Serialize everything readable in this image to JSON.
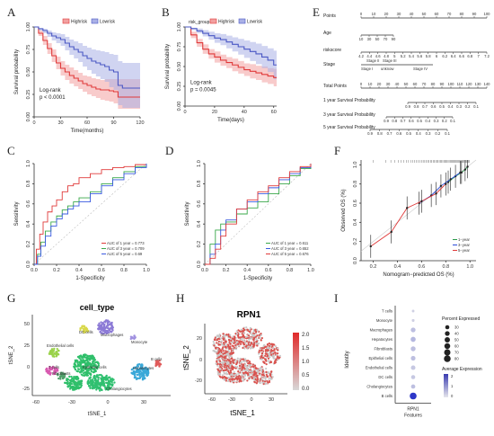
{
  "colors": {
    "highrisk": "#e03a3a",
    "highrisk_band": "#f2a0a0",
    "lowrisk": "#4a57c4",
    "lowrisk_band": "#a9b0e6",
    "roc1": "#e03a3a",
    "roc3": "#3aa84a",
    "roc5": "#3a5ae0",
    "cal1": "#2a9a4a",
    "cal3": "#2a4ad8",
    "cal5": "#e03a3a",
    "tsne_red": "#d9534f"
  },
  "chart_data": [
    {
      "id": "A",
      "type": "line",
      "letter": "A",
      "legend": [
        "Highrisk",
        "Lowrisk"
      ],
      "xlabel": "Time(months)",
      "ylabel": "Survival probability",
      "xticks": [
        "0",
        "30",
        "60",
        "90",
        "120"
      ],
      "xlim": [
        0,
        120
      ],
      "yticks": [
        "0.00",
        "0.25",
        "0.50",
        "0.75",
        "1.00"
      ],
      "ylim": [
        0,
        1
      ],
      "annotation": [
        "Log-rank",
        "p < 0.0001"
      ],
      "series": [
        {
          "name": "Highrisk",
          "x": [
            0,
            5,
            10,
            15,
            20,
            25,
            30,
            35,
            40,
            45,
            50,
            55,
            60,
            65,
            70,
            75,
            80,
            85,
            90,
            95,
            100,
            105,
            110,
            115,
            120
          ],
          "values": [
            1.0,
            0.93,
            0.85,
            0.76,
            0.68,
            0.6,
            0.54,
            0.5,
            0.46,
            0.43,
            0.4,
            0.37,
            0.35,
            0.33,
            0.31,
            0.3,
            0.3,
            0.29,
            0.28,
            0.22,
            0.22,
            0.22,
            0.22,
            0.22,
            0.22
          ],
          "lower": [
            1.0,
            0.9,
            0.8,
            0.7,
            0.61,
            0.53,
            0.46,
            0.41,
            0.37,
            0.34,
            0.31,
            0.28,
            0.25,
            0.23,
            0.21,
            0.19,
            0.18,
            0.17,
            0.15,
            0.09,
            0.09,
            0.09,
            0.09,
            0.09,
            0.09
          ],
          "upper": [
            1.0,
            0.96,
            0.9,
            0.82,
            0.75,
            0.67,
            0.62,
            0.58,
            0.55,
            0.52,
            0.49,
            0.46,
            0.45,
            0.43,
            0.42,
            0.41,
            0.42,
            0.42,
            0.42,
            0.42,
            0.42,
            0.42,
            0.42,
            0.42,
            0.42
          ]
        },
        {
          "name": "Lowrisk",
          "x": [
            0,
            5,
            10,
            15,
            20,
            25,
            30,
            35,
            40,
            45,
            50,
            55,
            60,
            65,
            70,
            75,
            80,
            85,
            90,
            95,
            100,
            105,
            110,
            115,
            120
          ],
          "values": [
            1.0,
            0.98,
            0.96,
            0.93,
            0.9,
            0.88,
            0.86,
            0.82,
            0.78,
            0.75,
            0.72,
            0.68,
            0.65,
            0.62,
            0.6,
            0.58,
            0.56,
            0.52,
            0.5,
            0.35,
            0.32,
            0.32,
            0.32,
            0.32,
            0.32
          ],
          "lower": [
            1.0,
            0.96,
            0.93,
            0.89,
            0.85,
            0.82,
            0.79,
            0.74,
            0.69,
            0.65,
            0.61,
            0.56,
            0.52,
            0.48,
            0.45,
            0.42,
            0.39,
            0.33,
            0.3,
            0.13,
            0.1,
            0.1,
            0.1,
            0.1,
            0.1
          ],
          "upper": [
            1.0,
            0.99,
            0.98,
            0.96,
            0.94,
            0.93,
            0.92,
            0.89,
            0.86,
            0.84,
            0.82,
            0.79,
            0.77,
            0.75,
            0.74,
            0.73,
            0.72,
            0.7,
            0.69,
            0.62,
            0.6,
            0.6,
            0.6,
            0.6,
            0.6
          ]
        }
      ]
    },
    {
      "id": "B",
      "type": "line",
      "letter": "B",
      "legend_title": "risk_group",
      "legend": [
        "Highrisk",
        "Lowrisk"
      ],
      "xlabel": "Time(days)",
      "ylabel": "Survival probability",
      "xticks": [
        "0",
        "20",
        "40",
        "60"
      ],
      "xlim": [
        0,
        62
      ],
      "yticks": [
        "0.00",
        "0.25",
        "0.50",
        "0.75",
        "1.00"
      ],
      "ylim": [
        0,
        1
      ],
      "annotation": [
        "Log-rank",
        "p = 0.0045"
      ],
      "series": [
        {
          "name": "Highrisk",
          "x": [
            0,
            4,
            8,
            12,
            16,
            20,
            24,
            28,
            32,
            36,
            40,
            44,
            48,
            52,
            56,
            60,
            62
          ],
          "values": [
            1.0,
            0.9,
            0.8,
            0.72,
            0.66,
            0.62,
            0.58,
            0.55,
            0.52,
            0.49,
            0.46,
            0.44,
            0.42,
            0.4,
            0.38,
            0.36,
            0.36
          ],
          "lower": [
            1.0,
            0.86,
            0.75,
            0.66,
            0.6,
            0.55,
            0.51,
            0.48,
            0.44,
            0.41,
            0.38,
            0.35,
            0.33,
            0.3,
            0.28,
            0.25,
            0.25
          ],
          "upper": [
            1.0,
            0.94,
            0.85,
            0.78,
            0.72,
            0.69,
            0.65,
            0.62,
            0.6,
            0.57,
            0.54,
            0.53,
            0.51,
            0.5,
            0.48,
            0.47,
            0.47
          ]
        },
        {
          "name": "Lowrisk",
          "x": [
            0,
            4,
            8,
            12,
            16,
            20,
            24,
            28,
            32,
            36,
            40,
            44,
            48,
            52,
            56,
            60,
            62
          ],
          "values": [
            1.0,
            0.98,
            0.95,
            0.92,
            0.89,
            0.86,
            0.84,
            0.81,
            0.78,
            0.75,
            0.72,
            0.69,
            0.66,
            0.62,
            0.58,
            0.52,
            0.52
          ],
          "lower": [
            1.0,
            0.96,
            0.92,
            0.88,
            0.84,
            0.8,
            0.77,
            0.73,
            0.69,
            0.65,
            0.61,
            0.57,
            0.53,
            0.48,
            0.43,
            0.34,
            0.34
          ],
          "upper": [
            1.0,
            0.99,
            0.98,
            0.96,
            0.94,
            0.92,
            0.91,
            0.89,
            0.87,
            0.85,
            0.83,
            0.81,
            0.79,
            0.76,
            0.73,
            0.7,
            0.7
          ]
        }
      ]
    },
    {
      "id": "C",
      "type": "line",
      "letter": "C",
      "xlabel": "1-Specificity",
      "ylabel": "Sensitivity",
      "xticks": [
        "0.0",
        "0.2",
        "0.4",
        "0.6",
        "0.8",
        "1.0"
      ],
      "xlim": [
        0,
        1
      ],
      "yticks": [
        "0.0",
        "0.2",
        "0.4",
        "0.6",
        "0.8",
        "1.0"
      ],
      "ylim": [
        0,
        1
      ],
      "legend": [
        "AUC of 1 year = 0.773",
        "AUC of 3 year = 0.709",
        "AUC of 5 year = 0.69"
      ],
      "series": [
        {
          "name": "AUC of 1 year = 0.773",
          "x": [
            0,
            0.02,
            0.05,
            0.08,
            0.12,
            0.16,
            0.2,
            0.25,
            0.3,
            0.35,
            0.4,
            0.5,
            0.6,
            0.7,
            0.8,
            0.9,
            1.0
          ],
          "values": [
            0,
            0.15,
            0.3,
            0.42,
            0.52,
            0.58,
            0.64,
            0.72,
            0.78,
            0.8,
            0.86,
            0.9,
            0.94,
            0.96,
            0.97,
            0.99,
            1.0
          ]
        },
        {
          "name": "AUC of 3 year = 0.709",
          "x": [
            0,
            0.03,
            0.06,
            0.1,
            0.15,
            0.2,
            0.25,
            0.3,
            0.35,
            0.4,
            0.5,
            0.6,
            0.7,
            0.8,
            0.9,
            1.0
          ],
          "values": [
            0,
            0.1,
            0.22,
            0.33,
            0.42,
            0.48,
            0.54,
            0.58,
            0.62,
            0.66,
            0.72,
            0.8,
            0.86,
            0.92,
            0.97,
            1.0
          ]
        },
        {
          "name": "AUC of 5 year = 0.69",
          "x": [
            0,
            0.03,
            0.06,
            0.1,
            0.15,
            0.2,
            0.25,
            0.3,
            0.35,
            0.4,
            0.5,
            0.6,
            0.7,
            0.8,
            0.9,
            1.0
          ],
          "values": [
            0,
            0.08,
            0.18,
            0.28,
            0.38,
            0.45,
            0.5,
            0.55,
            0.58,
            0.62,
            0.7,
            0.78,
            0.84,
            0.9,
            0.96,
            1.0
          ]
        }
      ]
    },
    {
      "id": "D",
      "type": "line",
      "letter": "D",
      "xlabel": "1-Specificity",
      "ylabel": "Sensitivity",
      "xticks": [
        "0.0",
        "0.2",
        "0.4",
        "0.6",
        "0.8",
        "1.0"
      ],
      "xlim": [
        0,
        1
      ],
      "yticks": [
        "0.0",
        "0.2",
        "0.4",
        "0.6",
        "0.8",
        "1.0"
      ],
      "ylim": [
        0,
        1
      ],
      "legend": [
        "AUC of 1 year = 0.611",
        "AUC of 3 year = 0.652",
        "AUC of 5 year = 0.676"
      ],
      "series": [
        {
          "name": "AUC of 1 year = 0.611",
          "x": [
            0,
            0.05,
            0.1,
            0.15,
            0.2,
            0.3,
            0.4,
            0.5,
            0.6,
            0.7,
            0.8,
            0.9,
            1.0
          ],
          "values": [
            0,
            0.2,
            0.34,
            0.4,
            0.42,
            0.5,
            0.56,
            0.62,
            0.7,
            0.8,
            0.88,
            0.95,
            1.0
          ]
        },
        {
          "name": "AUC of 3 year = 0.652",
          "x": [
            0,
            0.05,
            0.1,
            0.15,
            0.2,
            0.3,
            0.4,
            0.5,
            0.6,
            0.7,
            0.8,
            0.9,
            1.0
          ],
          "values": [
            0,
            0.1,
            0.2,
            0.34,
            0.44,
            0.55,
            0.62,
            0.7,
            0.76,
            0.84,
            0.9,
            0.96,
            1.0
          ]
        },
        {
          "name": "AUC of 5 year = 0.676",
          "x": [
            0,
            0.05,
            0.1,
            0.15,
            0.2,
            0.3,
            0.4,
            0.5,
            0.6,
            0.7,
            0.8,
            0.9,
            1.0
          ],
          "values": [
            0,
            0.06,
            0.15,
            0.28,
            0.4,
            0.55,
            0.64,
            0.72,
            0.78,
            0.86,
            0.92,
            0.97,
            1.0
          ]
        }
      ]
    },
    {
      "id": "F",
      "type": "line",
      "letter": "F",
      "xlabel": "Nomogram−predicted OS (%)",
      "ylabel": "Observed OS (%)",
      "xticks": [
        "0.2",
        "0.4",
        "0.6",
        "0.8",
        "1.0"
      ],
      "xlim": [
        0.1,
        1.05
      ],
      "yticks": [
        "0.0",
        "0.2",
        "0.4",
        "0.6",
        "0.8",
        "1.0"
      ],
      "ylim": [
        0,
        1.05
      ],
      "legend": [
        "1−year",
        "3−year",
        "5−year"
      ],
      "series": [
        {
          "name": "1−year",
          "x": [
            0.82,
            0.88,
            0.93,
            0.96,
            0.98
          ],
          "values": [
            0.82,
            0.88,
            0.92,
            0.95,
            0.98
          ]
        },
        {
          "name": "3−year",
          "x": [
            0.58,
            0.68,
            0.76,
            0.84,
            0.92
          ],
          "values": [
            0.6,
            0.68,
            0.78,
            0.85,
            0.92
          ]
        },
        {
          "name": "5−year",
          "x": [
            0.18,
            0.35,
            0.48,
            0.6,
            0.72,
            0.8
          ],
          "values": [
            0.15,
            0.3,
            0.55,
            0.62,
            0.7,
            0.8
          ]
        }
      ]
    },
    {
      "id": "H",
      "type": "scatter",
      "letter": "H",
      "title": "RPN1",
      "xlabel": "tSNE_1",
      "ylabel": "tSNE_2",
      "xticks": [
        "-60",
        "-30",
        "0",
        "30"
      ],
      "yticks": [
        "-20",
        "0",
        "20"
      ],
      "colorbar": [
        "2.0",
        "1.5",
        "1.0",
        "0.5",
        "0.0"
      ]
    },
    {
      "id": "I",
      "type": "scatter",
      "letter": "I",
      "ylabel": "Identity",
      "xlabel": "Features",
      "xticks": [
        "RPN1"
      ],
      "categories": [
        "T cells",
        "Monocyte",
        "Macrophages",
        "Hepatocytes",
        "Fibroblasts",
        "Epithelial cells",
        "Endothelial cells",
        "DC cells",
        "Cholangiocytes",
        "B cells"
      ],
      "percent_expressed": [
        12,
        14,
        40,
        45,
        42,
        38,
        36,
        30,
        32,
        82
      ],
      "average_expression": [
        0.2,
        0.2,
        0.4,
        0.5,
        0.4,
        0.4,
        0.3,
        0.3,
        0.4,
        2.0
      ],
      "legend_size_title": "Percent Expressed",
      "legend_size": [
        "30",
        "40",
        "50",
        "60",
        "70",
        "80"
      ],
      "legend_color_title": "Average Expression",
      "legend_color": [
        "2",
        "1",
        "0"
      ]
    }
  ],
  "panels": {
    "A": "A",
    "B": "B",
    "C": "C",
    "D": "D",
    "E": "E",
    "F": "F",
    "G": "G",
    "H": "H",
    "I": "I"
  },
  "nomogram": {
    "rows": [
      "Points",
      "Age",
      "riskscore",
      "Stage",
      "Total Points",
      "1 year Survival Probability",
      "3 year Survival Probability",
      "5 year Survival Probability"
    ],
    "points_ticks": [
      "0",
      "10",
      "20",
      "30",
      "40",
      "50",
      "60",
      "70",
      "80",
      "90",
      "100"
    ],
    "age_ticks": [
      "10",
      "30",
      "50",
      "70",
      "90"
    ],
    "risk_ticks": [
      "4.2",
      "4.4",
      "4.6",
      "4.8",
      "5",
      "5.2",
      "5.4",
      "5.6",
      "5.8",
      "6",
      "6.2",
      "6.4",
      "6.6",
      "6.8",
      "7",
      "7.2"
    ],
    "stage_labels": [
      "Stage II",
      "Stage III",
      "Stage I",
      "unknow",
      "Stage IV"
    ],
    "total_ticks": [
      "0",
      "10",
      "20",
      "30",
      "40",
      "50",
      "60",
      "70",
      "80",
      "90",
      "100",
      "110",
      "120",
      "130",
      "140"
    ],
    "surv1_ticks": [
      "0.9",
      "0.8",
      "0.7",
      "0.6",
      "0.5",
      "0.4",
      "0.3",
      "0.2",
      "0.1"
    ],
    "surv3_ticks": [
      "0.9",
      "0.8",
      "0.7",
      "0.6",
      "0.5",
      "0.4",
      "0.3",
      "0.2",
      "0.1"
    ],
    "surv5_ticks": [
      "0.9",
      "0.8",
      "0.7",
      "0.6",
      "0.5",
      "0.4",
      "0.3",
      "0.2",
      "0.1"
    ]
  },
  "tsne_celltype": {
    "title": "cell_type",
    "xlabel": "tSNE_1",
    "ylabel": "tSNE_2",
    "xticks": [
      "-60",
      "-30",
      "0",
      "30"
    ],
    "yticks": [
      "50",
      "25",
      "0",
      "-25"
    ],
    "clusters": [
      {
        "name": "Endothelial cells",
        "color": "#9ad24a"
      },
      {
        "name": "DC cells",
        "color": "#d8d84a"
      },
      {
        "name": "Macrophages",
        "color": "#8c7ad6"
      },
      {
        "name": "Monocyte",
        "color": "#a090e0"
      },
      {
        "name": "T cells",
        "color": "#d85ab0"
      },
      {
        "name": "Epithelial cells",
        "color": "#2fbf6a"
      },
      {
        "name": "Fibroblasts",
        "color": "#4fa06a"
      },
      {
        "name": "Hepatocytes",
        "color": "#3aa8d8"
      },
      {
        "name": "B cells",
        "color": "#e05a5a"
      },
      {
        "name": "Cholangiocytes",
        "color": "#30c070"
      }
    ]
  }
}
